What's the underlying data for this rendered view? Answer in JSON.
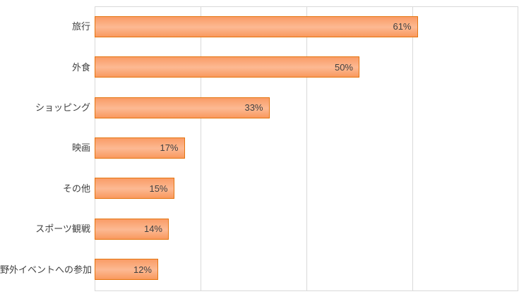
{
  "chart_data": {
    "type": "bar",
    "orientation": "horizontal",
    "categories": [
      "旅行",
      "外食",
      "ショッピング",
      "映画",
      "その他",
      "スポーツ観戦",
      "野外イベントへの参加"
    ],
    "values": [
      61,
      50,
      33,
      17,
      15,
      14,
      12
    ],
    "value_labels": [
      "61%",
      "50%",
      "33%",
      "17%",
      "15%",
      "14%",
      "12%"
    ],
    "xlim": [
      0,
      80
    ],
    "gridline_interval_percent": 20,
    "grid": true,
    "legend": false,
    "axis_tick_labels_visible": false,
    "colors": {
      "bar_fill_top": "#fa9c66",
      "bar_fill_mid": "#fcb993",
      "bar_fill_bottom": "#f9995e",
      "bar_border": "#e4740e",
      "gridline": "#d9d9d9",
      "text": "#404040",
      "background": "#ffffff"
    }
  }
}
